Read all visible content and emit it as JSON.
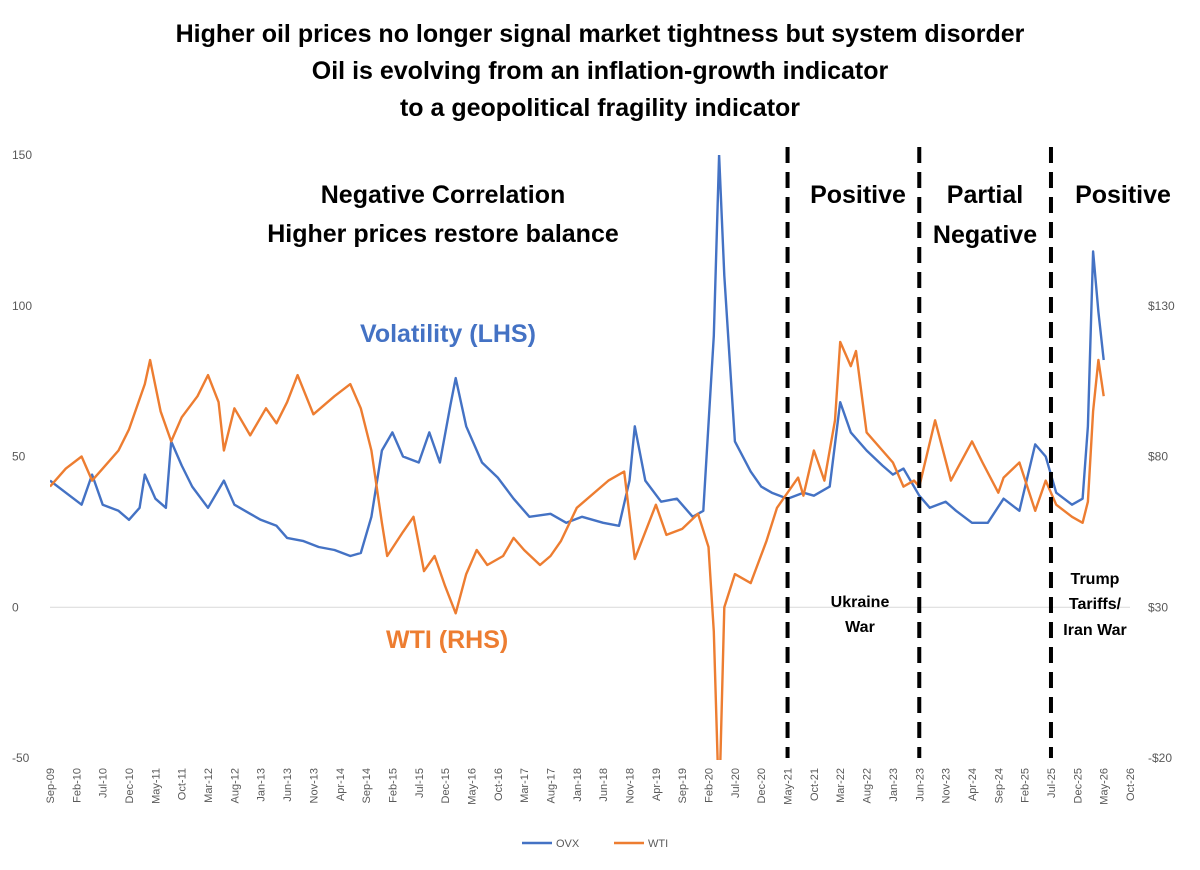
{
  "chart_data": {
    "type": "line",
    "title": [
      "Higher oil prices no longer signal market tightness but system disorder",
      "Oil is evolving from an inflation-growth indicator",
      "to a geopolitical fragility indicator"
    ],
    "y_left": {
      "range": [
        -50,
        150
      ],
      "ticks": [
        "-50",
        "0",
        "50",
        "100",
        "150"
      ]
    },
    "y_right": {
      "range": [
        -20,
        180
      ],
      "ticks": [
        "-$20",
        "$30",
        "$80",
        "$130"
      ]
    },
    "x_ticks": [
      "Sep-09",
      "Feb-10",
      "Jul-10",
      "Dec-10",
      "May-11",
      "Oct-11",
      "Mar-12",
      "Aug-12",
      "Jan-13",
      "Jun-13",
      "Nov-13",
      "Apr-14",
      "Sep-14",
      "Feb-15",
      "Jul-15",
      "Dec-15",
      "May-16",
      "Oct-16",
      "Mar-17",
      "Aug-17",
      "Jan-18",
      "Jun-18",
      "Nov-18",
      "Apr-19",
      "Sep-19",
      "Feb-20",
      "Jul-20",
      "Dec-20",
      "May-21",
      "Oct-21",
      "Mar-22",
      "Aug-22",
      "Jan-23",
      "Jun-23",
      "Nov-23",
      "Apr-24",
      "Sep-24",
      "Feb-25",
      "Jul-25",
      "Dec-25",
      "May-26",
      "Oct-26"
    ],
    "series": [
      {
        "name": "OVX",
        "axis": "left",
        "color": "#4472C4",
        "points": [
          [
            "Sep-09",
            42
          ],
          [
            "Dec-09",
            38
          ],
          [
            "Mar-10",
            34
          ],
          [
            "May-10",
            44
          ],
          [
            "Jul-10",
            34
          ],
          [
            "Oct-10",
            32
          ],
          [
            "Dec-10",
            29
          ],
          [
            "Feb-11",
            33
          ],
          [
            "Mar-11",
            44
          ],
          [
            "May-11",
            36
          ],
          [
            "Jul-11",
            33
          ],
          [
            "Aug-11",
            55
          ],
          [
            "Oct-11",
            47
          ],
          [
            "Dec-11",
            40
          ],
          [
            "Mar-12",
            33
          ],
          [
            "Jun-12",
            42
          ],
          [
            "Aug-12",
            34
          ],
          [
            "Nov-12",
            31
          ],
          [
            "Jan-13",
            29
          ],
          [
            "Apr-13",
            27
          ],
          [
            "Jun-13",
            23
          ],
          [
            "Sep-13",
            22
          ],
          [
            "Dec-13",
            20
          ],
          [
            "Mar-14",
            19
          ],
          [
            "Jun-14",
            17
          ],
          [
            "Aug-14",
            18
          ],
          [
            "Oct-14",
            30
          ],
          [
            "Dec-14",
            52
          ],
          [
            "Feb-15",
            58
          ],
          [
            "Apr-15",
            50
          ],
          [
            "Jul-15",
            48
          ],
          [
            "Sep-15",
            58
          ],
          [
            "Nov-15",
            48
          ],
          [
            "Jan-16",
            67
          ],
          [
            "Feb-16",
            76
          ],
          [
            "Apr-16",
            60
          ],
          [
            "Jul-16",
            48
          ],
          [
            "Oct-16",
            43
          ],
          [
            "Jan-17",
            36
          ],
          [
            "Apr-17",
            30
          ],
          [
            "Aug-17",
            31
          ],
          [
            "Nov-17",
            28
          ],
          [
            "Feb-18",
            30
          ],
          [
            "Jun-18",
            28
          ],
          [
            "Sep-18",
            27
          ],
          [
            "Nov-18",
            42
          ],
          [
            "Dec-18",
            60
          ],
          [
            "Feb-19",
            42
          ],
          [
            "May-19",
            35
          ],
          [
            "Aug-19",
            36
          ],
          [
            "Nov-19",
            30
          ],
          [
            "Jan-20",
            32
          ],
          [
            "Mar-20",
            90
          ],
          [
            "Apr-20",
            150
          ],
          [
            "May-20",
            110
          ],
          [
            "Jul-20",
            55
          ],
          [
            "Oct-20",
            45
          ],
          [
            "Dec-20",
            40
          ],
          [
            "Feb-21",
            38
          ],
          [
            "May-21",
            36
          ],
          [
            "Aug-21",
            38
          ],
          [
            "Oct-21",
            37
          ],
          [
            "Jan-22",
            40
          ],
          [
            "Mar-22",
            68
          ],
          [
            "May-22",
            58
          ],
          [
            "Aug-22",
            52
          ],
          [
            "Nov-22",
            47
          ],
          [
            "Jan-23",
            44
          ],
          [
            "Mar-23",
            46
          ],
          [
            "Jun-23",
            37
          ],
          [
            "Aug-23",
            33
          ],
          [
            "Nov-23",
            35
          ],
          [
            "Jan-24",
            32
          ],
          [
            "Apr-24",
            28
          ],
          [
            "Jul-24",
            28
          ],
          [
            "Oct-24",
            36
          ],
          [
            "Jan-25",
            32
          ],
          [
            "Apr-25",
            54
          ],
          [
            "Jun-25",
            50
          ],
          [
            "Aug-25",
            38
          ],
          [
            "Nov-25",
            34
          ],
          [
            "Jan-26",
            36
          ],
          [
            "Feb-26",
            60
          ],
          [
            "Mar-26",
            118
          ],
          [
            "Apr-26",
            98
          ],
          [
            "May-26",
            82
          ]
        ]
      },
      {
        "name": "WTI",
        "axis": "right",
        "color": "#ED7D31",
        "points": [
          [
            "Sep-09",
            70
          ],
          [
            "Dec-09",
            76
          ],
          [
            "Mar-10",
            80
          ],
          [
            "May-10",
            72
          ],
          [
            "Jul-10",
            76
          ],
          [
            "Oct-10",
            82
          ],
          [
            "Dec-10",
            89
          ],
          [
            "Mar-11",
            104
          ],
          [
            "Apr-11",
            112
          ],
          [
            "Jun-11",
            95
          ],
          [
            "Aug-11",
            85
          ],
          [
            "Oct-11",
            93
          ],
          [
            "Jan-12",
            100
          ],
          [
            "Mar-12",
            107
          ],
          [
            "May-12",
            98
          ],
          [
            "Jun-12",
            82
          ],
          [
            "Aug-12",
            96
          ],
          [
            "Nov-12",
            87
          ],
          [
            "Feb-13",
            96
          ],
          [
            "Apr-13",
            91
          ],
          [
            "Jun-13",
            98
          ],
          [
            "Aug-13",
            107
          ],
          [
            "Nov-13",
            94
          ],
          [
            "Jan-14",
            97
          ],
          [
            "Mar-14",
            100
          ],
          [
            "Jun-14",
            104
          ],
          [
            "Aug-14",
            96
          ],
          [
            "Oct-14",
            82
          ],
          [
            "Dec-14",
            58
          ],
          [
            "Jan-15",
            47
          ],
          [
            "Apr-15",
            55
          ],
          [
            "Jun-15",
            60
          ],
          [
            "Aug-15",
            42
          ],
          [
            "Oct-15",
            47
          ],
          [
            "Dec-15",
            37
          ],
          [
            "Feb-16",
            28
          ],
          [
            "Apr-16",
            41
          ],
          [
            "Jun-16",
            49
          ],
          [
            "Aug-16",
            44
          ],
          [
            "Nov-16",
            47
          ],
          [
            "Jan-17",
            53
          ],
          [
            "Mar-17",
            49
          ],
          [
            "Jun-17",
            44
          ],
          [
            "Aug-17",
            47
          ],
          [
            "Oct-17",
            52
          ],
          [
            "Jan-18",
            63
          ],
          [
            "Jul-18",
            72
          ],
          [
            "Oct-18",
            75
          ],
          [
            "Dec-18",
            46
          ],
          [
            "Apr-19",
            64
          ],
          [
            "Jun-19",
            54
          ],
          [
            "Sep-19",
            56
          ],
          [
            "Dec-19",
            61
          ],
          [
            "Feb-20",
            50
          ],
          [
            "Mar-20",
            22
          ],
          [
            "Apr-20",
            -37
          ],
          [
            "May-20",
            30
          ],
          [
            "Jul-20",
            41
          ],
          [
            "Oct-20",
            38
          ],
          [
            "Jan-21",
            52
          ],
          [
            "Mar-21",
            63
          ],
          [
            "Jul-21",
            73
          ],
          [
            "Aug-21",
            67
          ],
          [
            "Oct-21",
            82
          ],
          [
            "Dec-21",
            72
          ],
          [
            "Feb-22",
            92
          ],
          [
            "Mar-22",
            118
          ],
          [
            "May-22",
            110
          ],
          [
            "Jun-22",
            115
          ],
          [
            "Aug-22",
            88
          ],
          [
            "Nov-22",
            82
          ],
          [
            "Jan-23",
            78
          ],
          [
            "Mar-23",
            70
          ],
          [
            "May-23",
            72
          ],
          [
            "Jun-23",
            70
          ],
          [
            "Sep-23",
            92
          ],
          [
            "Dec-23",
            72
          ],
          [
            "Apr-24",
            85
          ],
          [
            "Jun-24",
            78
          ],
          [
            "Sep-24",
            68
          ],
          [
            "Oct-24",
            73
          ],
          [
            "Jan-25",
            78
          ],
          [
            "Apr-25",
            62
          ],
          [
            "Jun-25",
            72
          ],
          [
            "Aug-25",
            64
          ],
          [
            "Nov-25",
            60
          ],
          [
            "Jan-26",
            58
          ],
          [
            "Feb-26",
            65
          ],
          [
            "Mar-26",
            95
          ],
          [
            "Apr-26",
            112
          ],
          [
            "May-26",
            100
          ]
        ]
      }
    ],
    "regions": [
      {
        "lines": [
          "Negative Correlation",
          "Higher prices restore balance"
        ]
      },
      {
        "lines": [
          "Positive"
        ],
        "note": [
          "Ukraine",
          "War"
        ]
      },
      {
        "lines": [
          "Partial",
          "Negative"
        ]
      },
      {
        "lines": [
          "Positive"
        ],
        "note": [
          "Trump",
          "Tariffs/",
          "Iran War"
        ]
      }
    ],
    "dividers": [
      "May-21",
      "Jun-23",
      "Jul-25"
    ],
    "annotations": {
      "volatility": "Volatility (LHS)",
      "wti": "WTI (RHS)"
    },
    "legend": {
      "placement": "bottom-center",
      "items": [
        "OVX",
        "WTI"
      ]
    },
    "grid": false,
    "zero_line": true
  }
}
